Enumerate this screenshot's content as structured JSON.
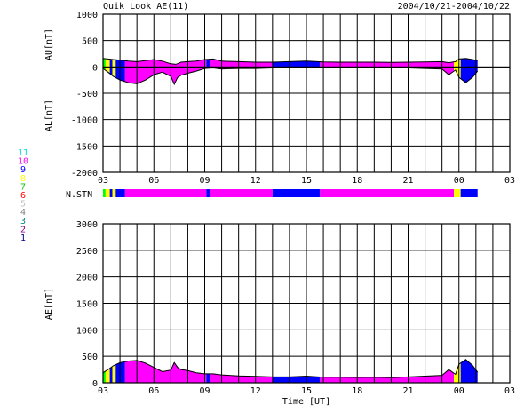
{
  "header": {
    "title": "Quik Look AE(11)",
    "date_range": "2004/10/21-2004/10/22"
  },
  "chart_data": [
    {
      "type": "area",
      "id": "au-al",
      "ylabel_upper": "AU[nT]",
      "ylabel_lower": "AL[nT]",
      "ylim": [
        -2000,
        1000
      ],
      "yticks": [
        1000,
        500,
        0,
        -500,
        -1000,
        -1500,
        -2000
      ],
      "xlim": [
        3,
        27
      ],
      "xtick_labels": [
        "03",
        "06",
        "09",
        "12",
        "15",
        "18",
        "21",
        "00",
        "03"
      ],
      "grid": true,
      "upper_series": {
        "x": [
          3.0,
          3.3,
          3.6,
          4.0,
          4.5,
          5.0,
          5.5,
          6.0,
          6.5,
          7.0,
          7.3,
          7.6,
          8.0,
          8.5,
          9.0,
          9.5,
          10.0,
          11.0,
          12.0,
          13.0,
          14.0,
          15.0,
          16.0,
          17.0,
          18.0,
          19.0,
          20.0,
          21.0,
          22.0,
          23.0,
          23.4,
          23.8,
          24.0,
          24.4,
          24.8,
          25.1
        ],
        "values": [
          160,
          150,
          140,
          130,
          110,
          100,
          120,
          140,
          110,
          60,
          50,
          90,
          100,
          110,
          140,
          150,
          110,
          100,
          90,
          90,
          100,
          110,
          95,
          90,
          90,
          90,
          85,
          90,
          95,
          100,
          80,
          100,
          150,
          160,
          140,
          120
        ]
      },
      "lower_series": {
        "x": [
          3.0,
          3.3,
          3.6,
          4.0,
          4.5,
          5.0,
          5.5,
          6.0,
          6.5,
          7.0,
          7.2,
          7.4,
          7.6,
          8.0,
          8.5,
          9.0,
          9.5,
          10.0,
          11.0,
          12.0,
          13.0,
          14.0,
          15.0,
          16.0,
          17.0,
          18.0,
          19.0,
          20.0,
          21.0,
          22.0,
          23.0,
          23.4,
          23.8,
          24.0,
          24.4,
          24.8,
          25.1
        ],
        "values": [
          -30,
          -100,
          -180,
          -250,
          -300,
          -320,
          -250,
          -150,
          -100,
          -180,
          -330,
          -200,
          -160,
          -120,
          -80,
          -30,
          -20,
          -40,
          -30,
          -30,
          -20,
          -10,
          -15,
          -10,
          -15,
          -10,
          -15,
          -10,
          -20,
          -30,
          -40,
          -150,
          -60,
          -200,
          -300,
          -200,
          -80
        ]
      },
      "segments": [
        {
          "x0": 3.0,
          "x1": 3.15,
          "color": "#00ff00"
        },
        {
          "x0": 3.15,
          "x1": 3.4,
          "color": "#ffff00"
        },
        {
          "x0": 3.4,
          "x1": 3.55,
          "color": "#0000ff"
        },
        {
          "x0": 3.55,
          "x1": 3.75,
          "color": "#ffff00"
        },
        {
          "x0": 3.75,
          "x1": 4.3,
          "color": "#0000ff"
        },
        {
          "x0": 4.3,
          "x1": 9.1,
          "color": "#ff00ff"
        },
        {
          "x0": 9.1,
          "x1": 9.3,
          "color": "#0000ff"
        },
        {
          "x0": 9.3,
          "x1": 13.0,
          "color": "#ff00ff"
        },
        {
          "x0": 13.0,
          "x1": 15.8,
          "color": "#0000ff"
        },
        {
          "x0": 15.8,
          "x1": 23.7,
          "color": "#ff00ff"
        },
        {
          "x0": 23.7,
          "x1": 24.1,
          "color": "#ffff00"
        },
        {
          "x0": 24.1,
          "x1": 25.1,
          "color": "#0000ff"
        }
      ]
    },
    {
      "type": "area",
      "id": "ae",
      "ylabel": "AE[nT]",
      "ylim": [
        0,
        3000
      ],
      "yticks": [
        3000,
        2500,
        2000,
        1500,
        1000,
        500,
        0
      ],
      "xlim": [
        3,
        27
      ],
      "xtick_labels": [
        "03",
        "06",
        "09",
        "12",
        "15",
        "18",
        "21",
        "00",
        "03"
      ],
      "xlabel": "Time [UT]",
      "grid": true,
      "series": {
        "x": [
          3.0,
          3.3,
          3.6,
          4.0,
          4.5,
          5.0,
          5.5,
          6.0,
          6.5,
          7.0,
          7.2,
          7.4,
          7.6,
          8.0,
          8.5,
          9.0,
          9.5,
          10.0,
          11.0,
          12.0,
          13.0,
          14.0,
          15.0,
          16.0,
          17.0,
          18.0,
          19.0,
          20.0,
          21.0,
          22.0,
          23.0,
          23.4,
          23.8,
          24.0,
          24.4,
          24.8,
          25.1
        ],
        "values": [
          190,
          250,
          320,
          380,
          410,
          420,
          370,
          290,
          210,
          240,
          380,
          290,
          250,
          230,
          190,
          170,
          170,
          150,
          130,
          120,
          110,
          110,
          125,
          105,
          105,
          100,
          105,
          95,
          110,
          125,
          140,
          250,
          160,
          350,
          440,
          330,
          200
        ]
      },
      "segments": [
        {
          "x0": 3.0,
          "x1": 3.15,
          "color": "#00ff00"
        },
        {
          "x0": 3.15,
          "x1": 3.4,
          "color": "#ffff00"
        },
        {
          "x0": 3.4,
          "x1": 3.55,
          "color": "#0000ff"
        },
        {
          "x0": 3.55,
          "x1": 3.75,
          "color": "#ffff00"
        },
        {
          "x0": 3.75,
          "x1": 4.3,
          "color": "#0000ff"
        },
        {
          "x0": 4.3,
          "x1": 9.1,
          "color": "#ff00ff"
        },
        {
          "x0": 9.1,
          "x1": 9.3,
          "color": "#0000ff"
        },
        {
          "x0": 9.3,
          "x1": 13.0,
          "color": "#ff00ff"
        },
        {
          "x0": 13.0,
          "x1": 15.8,
          "color": "#0000ff"
        },
        {
          "x0": 15.8,
          "x1": 23.7,
          "color": "#ff00ff"
        },
        {
          "x0": 23.7,
          "x1": 24.1,
          "color": "#ffff00"
        },
        {
          "x0": 24.1,
          "x1": 25.1,
          "color": "#0000ff"
        }
      ]
    }
  ],
  "station_bar": {
    "label": "N.STN",
    "segments": [
      {
        "x0": 3.0,
        "x1": 3.15,
        "color": "#00ff00"
      },
      {
        "x0": 3.15,
        "x1": 3.4,
        "color": "#ffff00"
      },
      {
        "x0": 3.4,
        "x1": 3.55,
        "color": "#0000ff"
      },
      {
        "x0": 3.55,
        "x1": 3.75,
        "color": "#ffff00"
      },
      {
        "x0": 3.75,
        "x1": 4.3,
        "color": "#0000ff"
      },
      {
        "x0": 4.3,
        "x1": 9.1,
        "color": "#ff00ff"
      },
      {
        "x0": 9.1,
        "x1": 9.3,
        "color": "#0000ff"
      },
      {
        "x0": 9.3,
        "x1": 13.0,
        "color": "#ff00ff"
      },
      {
        "x0": 13.0,
        "x1": 15.8,
        "color": "#0000ff"
      },
      {
        "x0": 15.8,
        "x1": 23.7,
        "color": "#ff00ff"
      },
      {
        "x0": 23.7,
        "x1": 24.1,
        "color": "#ffff00"
      },
      {
        "x0": 24.1,
        "x1": 25.1,
        "color": "#0000ff"
      }
    ]
  },
  "station_legend": [
    {
      "label": "11",
      "color": "#00d8d8"
    },
    {
      "label": "10",
      "color": "#ff00ff"
    },
    {
      "label": "9",
      "color": "#0000ff"
    },
    {
      "label": "8",
      "color": "#ffff00"
    },
    {
      "label": "7",
      "color": "#00cc00"
    },
    {
      "label": "6",
      "color": "#ff0000"
    },
    {
      "label": "5",
      "color": "#c0c0c0"
    },
    {
      "label": "4",
      "color": "#808080"
    },
    {
      "label": "3",
      "color": "#008888"
    },
    {
      "label": "2",
      "color": "#880088"
    },
    {
      "label": "1",
      "color": "#000088"
    }
  ]
}
